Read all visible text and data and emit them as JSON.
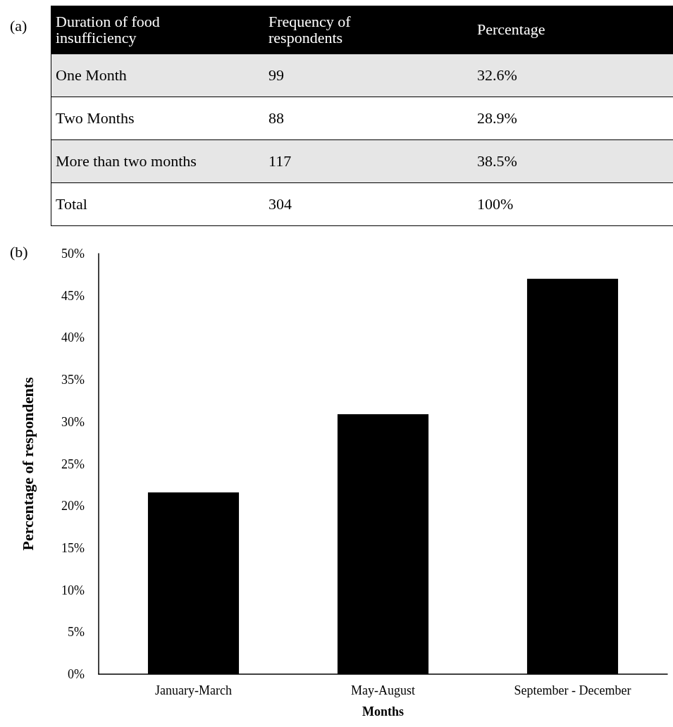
{
  "chart_data": [
    {
      "type": "other",
      "title": "(a)",
      "annotations": [
        "Duration of food insufficiency",
        "Frequency of respondents",
        "Percentage",
        "One Month",
        "99",
        "32.6%",
        "Two Months",
        "88",
        "28.9%",
        "More than two months",
        "117",
        "38.5%",
        "Total",
        "304",
        "100%"
      ]
    },
    {
      "type": "bar",
      "title": "(b)",
      "xlabel": "Months",
      "ylabel": "Percentage of respondents",
      "categories": [
        "January-March",
        "May-August",
        "September - December"
      ],
      "values": [
        21.6,
        30.9,
        47.0
      ],
      "color": "#000000",
      "ylim": [
        0,
        50
      ],
      "yticks": [
        {
          "value": 0,
          "label": "0%"
        },
        {
          "value": 5,
          "label": "5%"
        },
        {
          "value": 10,
          "label": "10%"
        },
        {
          "value": 15,
          "label": "15%"
        },
        {
          "value": 20,
          "label": "20%"
        },
        {
          "value": 25,
          "label": "25%"
        },
        {
          "value": 30,
          "label": "30%"
        },
        {
          "value": 35,
          "label": "35%"
        },
        {
          "value": 40,
          "label": "40%"
        },
        {
          "value": 45,
          "label": "45%"
        },
        {
          "value": 50,
          "label": "50%"
        }
      ],
      "grid": false
    }
  ]
}
